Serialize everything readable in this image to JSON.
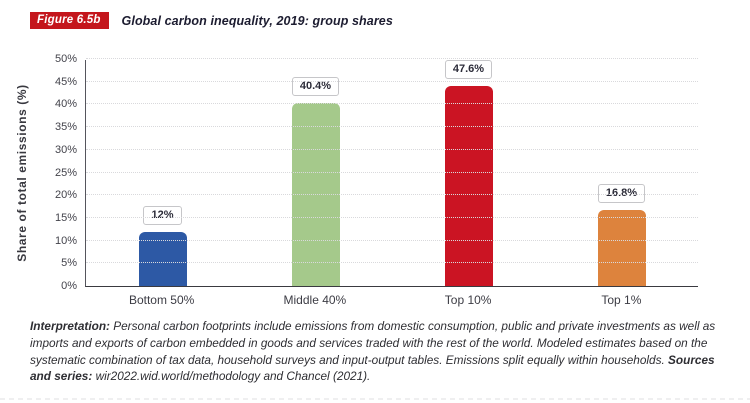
{
  "header": {
    "figure_label": "Figure 6.5b",
    "title": "Global carbon inequality, 2019: group shares"
  },
  "chart_data": {
    "type": "bar",
    "title": "Global carbon inequality, 2019: group shares",
    "categories": [
      "Bottom 50%",
      "Middle 40%",
      "Top 10%",
      "Top 1%"
    ],
    "values": [
      12,
      40.4,
      47.6,
      16.8
    ],
    "value_labels": [
      "12%",
      "40.4%",
      "47.6%",
      "16.8%"
    ],
    "bar_colors": [
      "#2d59a5",
      "#a5c98b",
      "#cb1423",
      "#dd833d"
    ],
    "xlabel": "",
    "ylabel": "Share of total emissions (%)",
    "ylim": [
      0,
      50
    ],
    "ytick_step": 5,
    "ytick_labels": [
      "0%",
      "5%",
      "10%",
      "15%",
      "20%",
      "25%",
      "30%",
      "35%",
      "40%",
      "45%",
      "50%"
    ],
    "grid": "horizontal-dotted",
    "legend": "none"
  },
  "footer": {
    "interpretation_label": "Interpretation:",
    "interpretation_text": " Personal carbon footprints include emissions from domestic consumption, public and private investments as well as imports and exports of carbon embedded in goods and services traded with the rest of the world. Modeled estimates based on the systematic combination of tax data, household surveys and input-output tables. Emissions split equally within households. ",
    "sources_label": "Sources and series:",
    "sources_text": " wir2022.wid.world/methodology and Chancel (2021)."
  }
}
